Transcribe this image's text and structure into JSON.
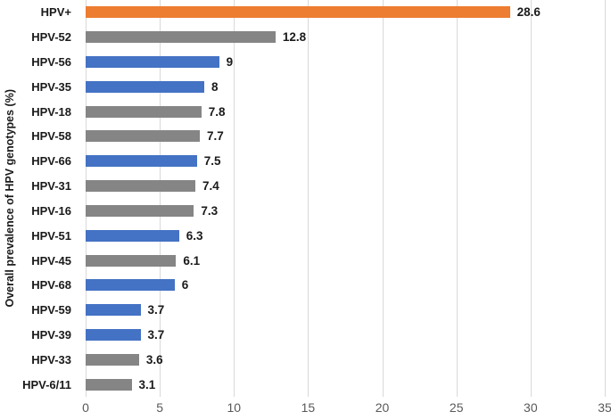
{
  "chart_data": {
    "type": "bar",
    "orientation": "horizontal",
    "title": "",
    "xlabel": "",
    "ylabel": "Overall prevalence of HPV genotypes (%)",
    "categories": [
      "HPV+",
      "HPV-52",
      "HPV-56",
      "HPV-35",
      "HPV-18",
      "HPV-58",
      "HPV-66",
      "HPV-31",
      "HPV-16",
      "HPV-51",
      "HPV-45",
      "HPV-68",
      "HPV-59",
      "HPV-39",
      "HPV-33",
      "HPV-6/11"
    ],
    "values": [
      28.6,
      12.8,
      9,
      8,
      7.8,
      7.7,
      7.5,
      7.4,
      7.3,
      6.3,
      6.1,
      6,
      3.7,
      3.7,
      3.6,
      3.1
    ],
    "value_labels": [
      "28.6",
      "12.8",
      "9",
      "8",
      "7.8",
      "7.7",
      "7.5",
      "7.4",
      "7.3",
      "6.3",
      "6.1",
      "6",
      "3.7",
      "3.7",
      "3.6",
      "3.1"
    ],
    "bar_colors": [
      "#ED7D31",
      "#858585",
      "#4472C4",
      "#4472C4",
      "#858585",
      "#858585",
      "#4472C4",
      "#858585",
      "#858585",
      "#4472C4",
      "#858585",
      "#4472C4",
      "#4472C4",
      "#4472C4",
      "#858585",
      "#858585"
    ],
    "xlim": [
      0,
      35
    ],
    "x_ticks": [
      "0",
      "5",
      "10",
      "15",
      "20",
      "25",
      "30",
      "35"
    ],
    "grid": true,
    "legend": "none",
    "colors": {
      "accent_orange": "#ED7D31",
      "accent_blue": "#4472C4",
      "accent_gray": "#858585",
      "gridline": "#D9D9D9",
      "tick_label": "#595959",
      "text": "#1A1A1A",
      "background": "#FFFFFF"
    }
  }
}
